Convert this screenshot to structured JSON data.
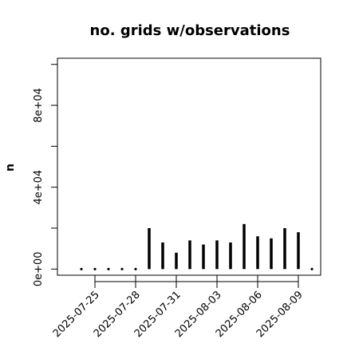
{
  "chart_data": {
    "type": "bar",
    "title": "no. grids w/observations",
    "xlabel": "",
    "ylabel": "n",
    "ylim": [
      -3000,
      103000
    ],
    "yticks": [
      0,
      40000,
      80000
    ],
    "ytick_labels": [
      "0e+00",
      "4e+04",
      "8e+04"
    ],
    "xticks": [
      "2025-07-25",
      "2025-07-28",
      "2025-07-31",
      "2025-08-03",
      "2025-08-06",
      "2025-08-09"
    ],
    "xtick_labels": [
      "2025-07-25",
      "2025-07-28",
      "2025-07-31",
      "2025-08-03",
      "2025-08-06",
      "2025-08-09"
    ],
    "highlight_tick": "2025-07-31",
    "highlight_color": "#228b22",
    "bar_color": "#000000",
    "x": [
      "2025-07-24",
      "2025-07-25",
      "2025-07-26",
      "2025-07-27",
      "2025-07-28",
      "2025-07-29",
      "2025-07-30",
      "2025-07-31",
      "2025-08-01",
      "2025-08-02",
      "2025-08-03",
      "2025-08-04",
      "2025-08-05",
      "2025-08-06",
      "2025-08-07",
      "2025-08-08",
      "2025-08-09",
      "2025-08-10"
    ],
    "values": [
      0,
      0,
      0,
      0,
      0,
      20000,
      13000,
      8000,
      14000,
      12000,
      14000,
      13000,
      22000,
      16000,
      15000,
      20000,
      18000,
      0
    ],
    "grid": false,
    "legend": "none"
  }
}
